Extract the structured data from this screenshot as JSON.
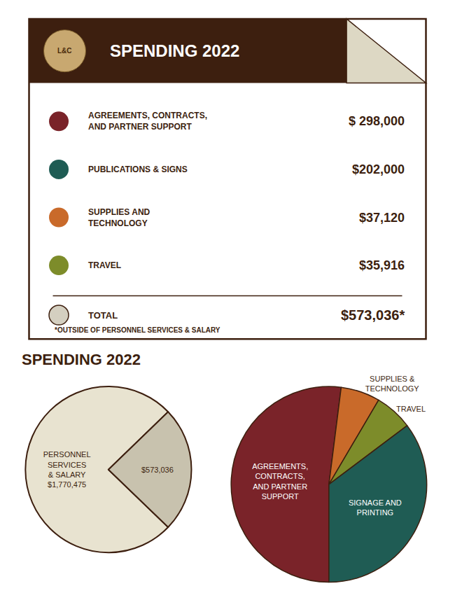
{
  "chart_data": [
    {
      "type": "card",
      "title": "SPENDING 2022",
      "logo_text": "L&C",
      "categories": [
        "AGREEMENTS, CONTRACTS,\nAND PARTNER SUPPORT",
        "PUBLICATIONS & SIGNS",
        "SUPPLIES AND\nTECHNOLOGY",
        "TRAVEL"
      ],
      "values": [
        298000,
        202000,
        37120,
        35916
      ],
      "value_labels": [
        "$ 298,000",
        "$202,000",
        "$37,120",
        "$35,916"
      ],
      "colors": [
        "#7a2329",
        "#1f5c54",
        "#c96a2a",
        "#7d8c2a"
      ],
      "total": {
        "label": "TOTAL",
        "value": 573036,
        "value_label": "$573,036*",
        "color": "#d4cfc0"
      },
      "footnote": "*OUTSIDE OF PERSONNEL SERVICES & SALARY"
    },
    {
      "type": "pie",
      "title": "SPENDING 2022",
      "categories": [
        "PERSONNEL\nSERVICES\n& SALARY\n$1,770,475",
        "$573,036"
      ],
      "values": [
        1770475,
        573036
      ],
      "colors": [
        "#e8e3d0",
        "#c8c2ae"
      ]
    },
    {
      "type": "pie",
      "categories": [
        "AGREEMENTS,\nCONTRACTS,\nAND PARTNER\nSUPPORT",
        "SUPPLIES &\nTECHNOLOGY",
        "TRAVEL",
        "SIGNAGE AND\nPRINTING"
      ],
      "values": [
        298000,
        37120,
        35916,
        202000
      ],
      "colors": [
        "#7a2329",
        "#c96a2a",
        "#7d8c2a",
        "#1f5c54"
      ]
    }
  ]
}
